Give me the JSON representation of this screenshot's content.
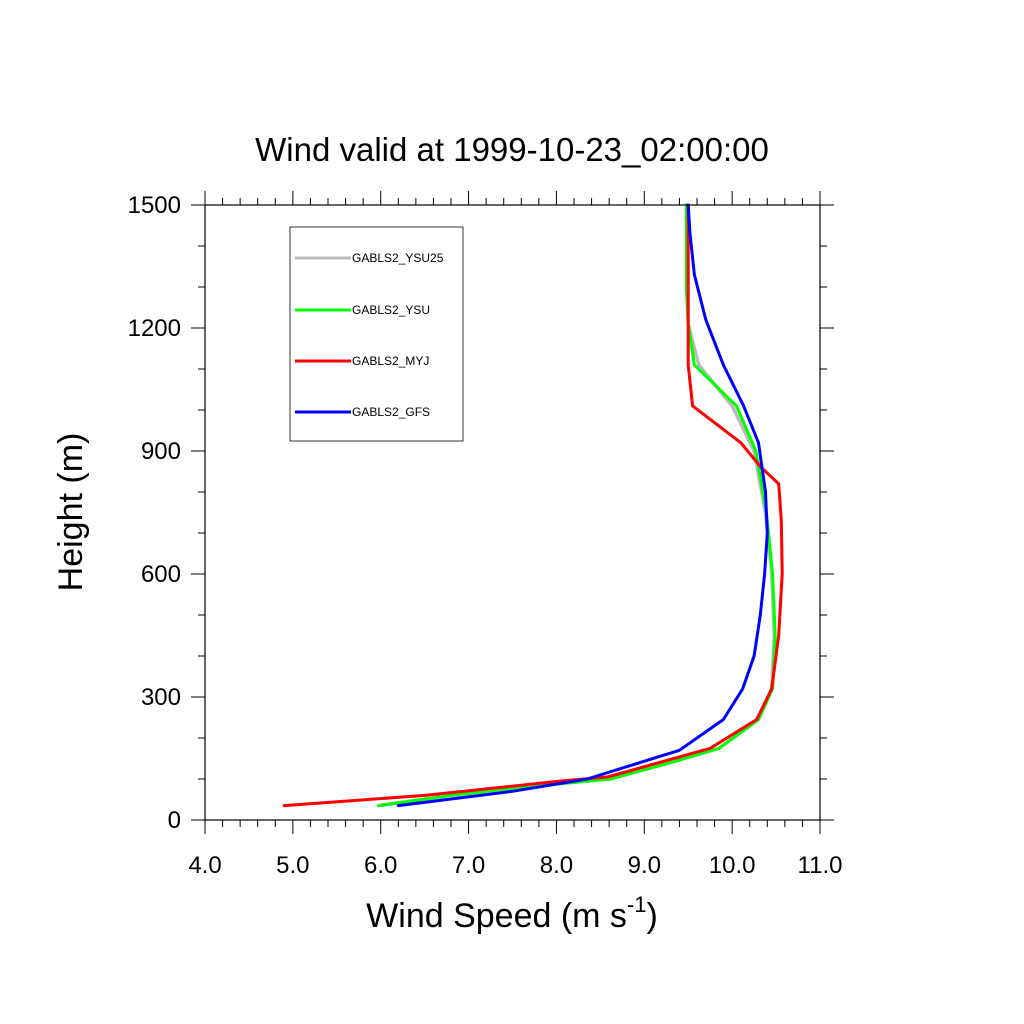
{
  "chart_data": {
    "type": "line",
    "title": "Wind valid at 1999-10-23_02:00:00",
    "xlabel": "Wind Speed (m s",
    "xlabel_superscript": "-1",
    "xlabel_suffix": ")",
    "ylabel": "Height (m)",
    "xlim": [
      4.0,
      11.0
    ],
    "ylim": [
      0,
      1500
    ],
    "xticks": [
      "4.0",
      "5.0",
      "6.0",
      "7.0",
      "8.0",
      "9.0",
      "10.0",
      "11.0"
    ],
    "yticks": [
      "0",
      "300",
      "600",
      "900",
      "1200",
      "1500"
    ],
    "grid": false,
    "legend_position": "top-left",
    "series": [
      {
        "name": "GABLS2_YSU25",
        "color": "#bbbbbb",
        "x": [
          5.97,
          6.8,
          7.6,
          8.6,
          9.3,
          9.85,
          10.3,
          10.45,
          10.48,
          10.45,
          10.38,
          10.25,
          10.0,
          9.62,
          9.5,
          9.48,
          9.48
        ],
        "y": [
          35,
          60,
          80,
          100,
          140,
          175,
          245,
          320,
          450,
          600,
          750,
          900,
          1010,
          1110,
          1210,
          1300,
          1500
        ]
      },
      {
        "name": "GABLS2_YSU",
        "color": "#00ff00",
        "x": [
          5.98,
          6.8,
          7.6,
          8.62,
          9.3,
          9.85,
          10.3,
          10.46,
          10.49,
          10.46,
          10.39,
          10.27,
          10.05,
          9.57,
          9.5,
          9.48,
          9.48
        ],
        "y": [
          35,
          60,
          80,
          100,
          140,
          175,
          245,
          320,
          450,
          600,
          750,
          900,
          1010,
          1110,
          1210,
          1300,
          1500
        ]
      },
      {
        "name": "GABLS2_MYJ",
        "color": "#ff0000",
        "x": [
          4.9,
          6.5,
          8.05,
          8.58,
          9.75,
          10.28,
          10.45,
          10.53,
          10.57,
          10.56,
          10.53,
          10.33,
          10.1,
          9.55,
          9.5,
          9.5,
          9.5,
          9.5
        ],
        "y": [
          35,
          60,
          95,
          105,
          175,
          245,
          320,
          450,
          600,
          730,
          820,
          860,
          920,
          1010,
          1110,
          1200,
          1300,
          1500
        ]
      },
      {
        "name": "GABLS2_GFS",
        "color": "#0000ff",
        "x": [
          6.2,
          7.5,
          8.35,
          8.8,
          9.4,
          9.9,
          10.12,
          10.25,
          10.32,
          10.37,
          10.4,
          10.38,
          10.3,
          10.13,
          9.9,
          9.7,
          9.57,
          9.52,
          9.5
        ],
        "y": [
          35,
          70,
          100,
          130,
          170,
          245,
          320,
          400,
          500,
          600,
          700,
          800,
          920,
          1010,
          1110,
          1220,
          1330,
          1430,
          1500
        ]
      }
    ]
  }
}
